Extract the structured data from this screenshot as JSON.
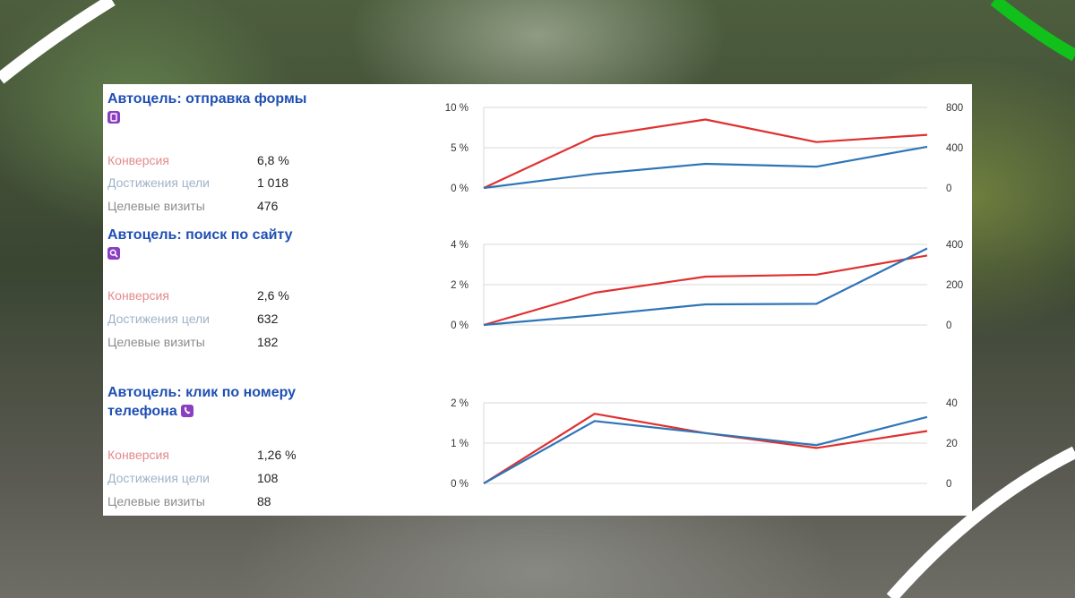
{
  "goals": [
    {
      "title": "Автоцель: отправка формы",
      "icon": "form-icon",
      "metrics": [
        {
          "label": "Конверсия",
          "value": "6,8 %"
        },
        {
          "label": "Достижения цели",
          "value": "1 018"
        },
        {
          "label": "Целевые визиты",
          "value": "476"
        }
      ]
    },
    {
      "title": "Автоцель: поиск по сайту",
      "icon": "search-icon",
      "metrics": [
        {
          "label": "Конверсия",
          "value": "2,6 %"
        },
        {
          "label": "Достижения цели",
          "value": "632"
        },
        {
          "label": "Целевые визиты",
          "value": "182"
        }
      ]
    },
    {
      "title": "Автоцель: клик по номеру телефона",
      "icon": "phone-icon",
      "metrics": [
        {
          "label": "Конверсия",
          "value": "1,26 %"
        },
        {
          "label": "Достижения цели",
          "value": "108"
        },
        {
          "label": "Целевые визиты",
          "value": "88"
        }
      ]
    }
  ],
  "colors": {
    "title": "#1f4fb3",
    "conversion_line": "#e03030",
    "count_line": "#2e75b6",
    "icon": "#8a3fc0"
  },
  "chart_data": [
    {
      "type": "line",
      "x": [
        0,
        1,
        2,
        3,
        4
      ],
      "left_ticks": [
        "10 %",
        "5 %",
        "0 %"
      ],
      "right_ticks": [
        "800",
        "400",
        "0"
      ],
      "left_ylim": [
        0,
        10
      ],
      "right_ylim": [
        0,
        800
      ],
      "grid": true,
      "series": [
        {
          "axis": "left",
          "color": "#e03030",
          "values": [
            0,
            6.4,
            8.5,
            5.7,
            6.6
          ]
        },
        {
          "axis": "right",
          "color": "#2e75b6",
          "values": [
            0,
            140,
            240,
            212,
            410
          ]
        }
      ]
    },
    {
      "type": "line",
      "x": [
        0,
        1,
        2,
        3,
        4
      ],
      "left_ticks": [
        "4 %",
        "2 %",
        "0 %"
      ],
      "right_ticks": [
        "400",
        "200",
        "0"
      ],
      "left_ylim": [
        0,
        4
      ],
      "right_ylim": [
        0,
        400
      ],
      "grid": true,
      "series": [
        {
          "axis": "left",
          "color": "#e03030",
          "values": [
            0,
            1.6,
            2.4,
            2.5,
            3.45
          ]
        },
        {
          "axis": "right",
          "color": "#2e75b6",
          "values": [
            0,
            48,
            102,
            105,
            380
          ]
        }
      ]
    },
    {
      "type": "line",
      "x": [
        0,
        1,
        2,
        3,
        4
      ],
      "left_ticks": [
        "2 %",
        "1 %",
        "0 %"
      ],
      "right_ticks": [
        "40",
        "20",
        "0"
      ],
      "left_ylim": [
        0,
        2
      ],
      "right_ylim": [
        0,
        40
      ],
      "grid": true,
      "series": [
        {
          "axis": "left",
          "color": "#e03030",
          "values": [
            0,
            1.73,
            1.25,
            0.88,
            1.3
          ]
        },
        {
          "axis": "right",
          "color": "#2e75b6",
          "values": [
            0,
            31,
            25,
            19,
            33
          ]
        }
      ]
    }
  ]
}
